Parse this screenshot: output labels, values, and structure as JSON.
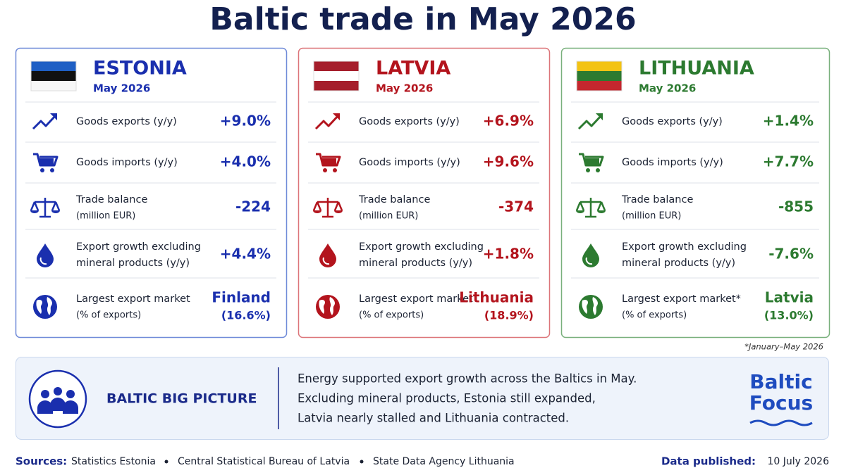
{
  "title": "Baltic trade in May 2026",
  "countries": [
    {
      "name": "ESTONIA",
      "period": "May 2026",
      "color": "#1a2fae",
      "border": "#6f8ad8",
      "rows": [
        {
          "label": [
            "Goods exports (y/y)"
          ],
          "value": [
            "+9.0%"
          ]
        },
        {
          "label": [
            "Goods imports (y/y)"
          ],
          "value": [
            "+4.0%"
          ]
        },
        {
          "label": [
            "Trade balance",
            "(million EUR)"
          ],
          "value": [
            "-224"
          ]
        },
        {
          "label": [
            "Export growth excluding",
            "mineral products (y/y)"
          ],
          "value": [
            "+4.4%"
          ]
        },
        {
          "label": [
            "Largest export market",
            "(% of exports)"
          ],
          "value": [
            "Finland",
            "(16.6%)"
          ]
        }
      ]
    },
    {
      "name": "LATVIA",
      "period": "May 2026",
      "color": "#b3141d",
      "border": "#dc7479",
      "rows": [
        {
          "label": [
            "Goods exports (y/y)"
          ],
          "value": [
            "+6.9%"
          ]
        },
        {
          "label": [
            "Goods imports (y/y)"
          ],
          "value": [
            "+9.6%"
          ]
        },
        {
          "label": [
            "Trade balance",
            "(million EUR)"
          ],
          "value": [
            "-374"
          ]
        },
        {
          "label": [
            "Export growth excluding",
            "mineral products (y/y)"
          ],
          "value": [
            "+1.8%"
          ]
        },
        {
          "label": [
            "Largest export market",
            "(% of exports)"
          ],
          "value": [
            "Lithuania",
            "(18.9%)"
          ]
        }
      ]
    },
    {
      "name": "LITHUANIA",
      "period": "May 2026",
      "color": "#2c7a30",
      "border": "#79b07c",
      "rows": [
        {
          "label": [
            "Goods exports (y/y)"
          ],
          "value": [
            "+1.4%"
          ]
        },
        {
          "label": [
            "Goods imports (y/y)"
          ],
          "value": [
            "+7.7%"
          ]
        },
        {
          "label": [
            "Trade balance",
            "(million EUR)"
          ],
          "value": [
            "-855"
          ]
        },
        {
          "label": [
            "Export growth excluding",
            "mineral products (y/y)"
          ],
          "value": [
            "-7.6%"
          ]
        },
        {
          "label": [
            "Largest export market*",
            "(% of exports)"
          ],
          "value": [
            "Latvia",
            "(13.0%)"
          ]
        }
      ]
    }
  ],
  "footnote": "*January–May 2026",
  "big_picture": {
    "label": "BALTIC BIG PICTURE",
    "lines": [
      "Energy supported export growth across the Baltics in May.",
      "Excluding mineral products, Estonia still expanded,",
      "Latvia nearly stalled and Lithuania contracted."
    ]
  },
  "brand": [
    "Baltic",
    "Focus"
  ],
  "sources": {
    "label": "Sources:",
    "items": [
      "Statistics Estonia",
      "Central Statistical Bureau of Latvia",
      "State Data Agency Lithuania"
    ]
  },
  "published": {
    "label": "Data published:",
    "date": "10 July 2026"
  }
}
